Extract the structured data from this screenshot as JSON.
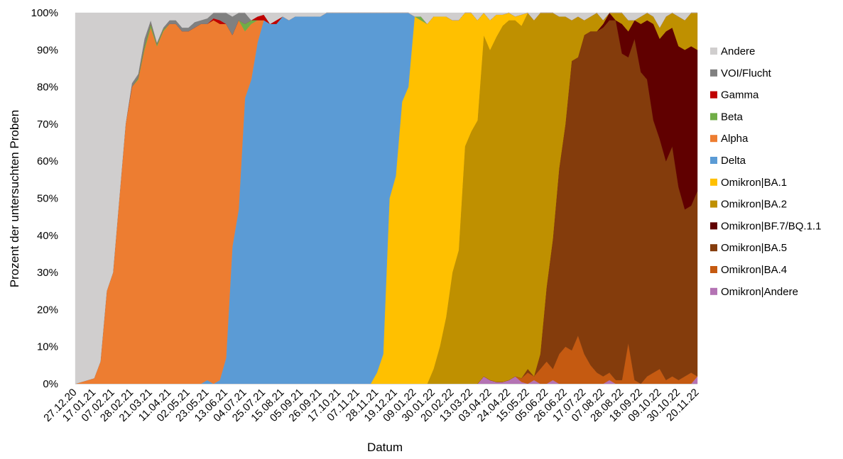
{
  "chart_data": {
    "type": "area",
    "stacked_percent": true,
    "xlabel": "Datum",
    "ylabel": "Prozent der untersuchten Proben",
    "ylim": [
      0,
      100
    ],
    "y_ticks": [
      "0%",
      "10%",
      "20%",
      "30%",
      "40%",
      "50%",
      "60%",
      "70%",
      "80%",
      "90%",
      "100%"
    ],
    "x_tick_labels": [
      "27.12.20",
      "17.01.21",
      "07.02.21",
      "28.02.21",
      "21.03.21",
      "11.04.21",
      "02.05.21",
      "23.05.21",
      "13.06.21",
      "04.07.21",
      "25.07.21",
      "15.08.21",
      "05.09.21",
      "26.09.21",
      "17.10.21",
      "07.11.21",
      "28.11.21",
      "19.12.21",
      "09.01.22",
      "30.01.22",
      "20.02.22",
      "13.03.22",
      "03.04.22",
      "24.04.22",
      "15.05.22",
      "05.06.22",
      "26.06.22",
      "17.07.22",
      "07.08.22",
      "28.08.22",
      "18.09.22",
      "09.10.22",
      "30.10.22",
      "20.11.22"
    ],
    "x_weeks": [
      1,
      4,
      7,
      10,
      13,
      16,
      19,
      22,
      25,
      28,
      31,
      34,
      37,
      40,
      43,
      46,
      49,
      52,
      55,
      58,
      61,
      64,
      67,
      70,
      73,
      76,
      79,
      82,
      85,
      88,
      91,
      94,
      97,
      100
    ],
    "x_range": [
      1,
      100
    ],
    "grid": false,
    "legend_position": "right",
    "stack_order": [
      "Omikron|Andere",
      "Omikron|BA.4",
      "Omikron|BA.5",
      "Omikron|BF.7/BQ.1.1",
      "Omikron|BA.2",
      "Omikron|BA.1",
      "Delta",
      "Alpha",
      "Beta",
      "Gamma",
      "VOI/Flucht",
      "Andere"
    ],
    "legend": [
      {
        "name": "Andere",
        "color": "#d0cece"
      },
      {
        "name": "VOI/Flucht",
        "color": "#808080"
      },
      {
        "name": "Gamma",
        "color": "#c00000"
      },
      {
        "name": "Beta",
        "color": "#70ad47"
      },
      {
        "name": "Alpha",
        "color": "#ed7d31"
      },
      {
        "name": "Delta",
        "color": "#5b9bd5"
      },
      {
        "name": "Omikron|BA.1",
        "color": "#ffc000"
      },
      {
        "name": "Omikron|BA.2",
        "color": "#bf9000"
      },
      {
        "name": "Omikron|BF.7/BQ.1.1",
        "color": "#600000"
      },
      {
        "name": "Omikron|BA.5",
        "color": "#843c0c"
      },
      {
        "name": "Omikron|BA.4",
        "color": "#c55a11"
      },
      {
        "name": "Omikron|Andere",
        "color": "#b473b4"
      }
    ],
    "series": [
      {
        "name": "Omikron|Andere",
        "color": "#b473b4",
        "points": [
          [
            1,
            0
          ],
          [
            65,
            0
          ],
          [
            66,
            2
          ],
          [
            67,
            1
          ],
          [
            68,
            0.5
          ],
          [
            69,
            0.5
          ],
          [
            70,
            1
          ],
          [
            71,
            2
          ],
          [
            72,
            0.5
          ],
          [
            73,
            0
          ],
          [
            74,
            1
          ],
          [
            75,
            0
          ],
          [
            76,
            0
          ],
          [
            77,
            1
          ],
          [
            78,
            0
          ],
          [
            85,
            0
          ],
          [
            86,
            1
          ],
          [
            87,
            0
          ],
          [
            99,
            0
          ],
          [
            100,
            2
          ]
        ]
      },
      {
        "name": "Omikron|BA.4",
        "color": "#c55a11",
        "points": [
          [
            1,
            0
          ],
          [
            70,
            0
          ],
          [
            71,
            0
          ],
          [
            72,
            1
          ],
          [
            73,
            3
          ],
          [
            74,
            1
          ],
          [
            75,
            4
          ],
          [
            76,
            6
          ],
          [
            77,
            3
          ],
          [
            78,
            8
          ],
          [
            79,
            10
          ],
          [
            80,
            9
          ],
          [
            81,
            13
          ],
          [
            82,
            8
          ],
          [
            83,
            5
          ],
          [
            84,
            3
          ],
          [
            85,
            2
          ],
          [
            86,
            2
          ],
          [
            87,
            1
          ],
          [
            88,
            1
          ],
          [
            89,
            11
          ],
          [
            90,
            1
          ],
          [
            91,
            0
          ],
          [
            92,
            2
          ],
          [
            93,
            3
          ],
          [
            94,
            4
          ],
          [
            95,
            1
          ],
          [
            96,
            2
          ],
          [
            97,
            1
          ],
          [
            98,
            2
          ],
          [
            99,
            3
          ],
          [
            100,
            0
          ]
        ]
      },
      {
        "name": "Omikron|BA.5",
        "color": "#843c0c",
        "points": [
          [
            1,
            0
          ],
          [
            70,
            0
          ],
          [
            71,
            0
          ],
          [
            72,
            0
          ],
          [
            73,
            1
          ],
          [
            74,
            0
          ],
          [
            75,
            4
          ],
          [
            76,
            20
          ],
          [
            77,
            35
          ],
          [
            78,
            50
          ],
          [
            79,
            60
          ],
          [
            80,
            78
          ],
          [
            81,
            75
          ],
          [
            82,
            86
          ],
          [
            83,
            90
          ],
          [
            84,
            92
          ],
          [
            85,
            94
          ],
          [
            86,
            95
          ],
          [
            87,
            97
          ],
          [
            88,
            88
          ],
          [
            89,
            77
          ],
          [
            90,
            92
          ],
          [
            91,
            84
          ],
          [
            92,
            80
          ],
          [
            93,
            68
          ],
          [
            94,
            62
          ],
          [
            95,
            59
          ],
          [
            96,
            62
          ],
          [
            97,
            52
          ],
          [
            98,
            45
          ],
          [
            99,
            45
          ],
          [
            100,
            50
          ]
        ]
      },
      {
        "name": "Omikron|BF.7/BQ.1.1",
        "color": "#600000",
        "points": [
          [
            1,
            0
          ],
          [
            82,
            0
          ],
          [
            83,
            0
          ],
          [
            84,
            0
          ],
          [
            85,
            1
          ],
          [
            86,
            2
          ],
          [
            87,
            0
          ],
          [
            88,
            8
          ],
          [
            89,
            7
          ],
          [
            90,
            5
          ],
          [
            91,
            13
          ],
          [
            92,
            16
          ],
          [
            93,
            26
          ],
          [
            94,
            27
          ],
          [
            95,
            35
          ],
          [
            96,
            32
          ],
          [
            97,
            38
          ],
          [
            98,
            43
          ],
          [
            99,
            43
          ],
          [
            100,
            38
          ]
        ]
      },
      {
        "name": "Omikron|BA.2",
        "color": "#bf9000",
        "points": [
          [
            1,
            0
          ],
          [
            57,
            0
          ],
          [
            58,
            4
          ],
          [
            59,
            10
          ],
          [
            60,
            18
          ],
          [
            61,
            30
          ],
          [
            62,
            36
          ],
          [
            63,
            64
          ],
          [
            64,
            68
          ],
          [
            65,
            71
          ],
          [
            66,
            92
          ],
          [
            67,
            89
          ],
          [
            68,
            93
          ],
          [
            69,
            96
          ],
          [
            70,
            97
          ],
          [
            71,
            96
          ],
          [
            72,
            95
          ],
          [
            73,
            96
          ],
          [
            74,
            96
          ],
          [
            75,
            94
          ],
          [
            76,
            81
          ],
          [
            77,
            64
          ],
          [
            78,
            41
          ],
          [
            79,
            29
          ],
          [
            80,
            11
          ],
          [
            81,
            11
          ],
          [
            82,
            4
          ],
          [
            83,
            4
          ],
          [
            84,
            5
          ],
          [
            85,
            1
          ],
          [
            86,
            0
          ],
          [
            87,
            2
          ],
          [
            88,
            3
          ],
          [
            89,
            3
          ],
          [
            90,
            0
          ],
          [
            91,
            2
          ],
          [
            92,
            2
          ],
          [
            93,
            2
          ],
          [
            94,
            3
          ],
          [
            95,
            4
          ],
          [
            96,
            4
          ],
          [
            97,
            8
          ],
          [
            98,
            8
          ],
          [
            99,
            9
          ],
          [
            100,
            10
          ]
        ]
      },
      {
        "name": "Omikron|BA.1",
        "color": "#ffc000",
        "points": [
          [
            1,
            0
          ],
          [
            48,
            0
          ],
          [
            49,
            3
          ],
          [
            50,
            8
          ],
          [
            51,
            50
          ],
          [
            52,
            56
          ],
          [
            53,
            76
          ],
          [
            54,
            80
          ],
          [
            55,
            99
          ],
          [
            56,
            98
          ],
          [
            57,
            97
          ],
          [
            58,
            95
          ],
          [
            59,
            89
          ],
          [
            60,
            81
          ],
          [
            61,
            68
          ],
          [
            62,
            62
          ],
          [
            63,
            36
          ],
          [
            64,
            32
          ],
          [
            65,
            27
          ],
          [
            66,
            6
          ],
          [
            67,
            8
          ],
          [
            68,
            6
          ],
          [
            69,
            3
          ],
          [
            70,
            2
          ],
          [
            71,
            1
          ],
          [
            72,
            3
          ],
          [
            73,
            0
          ],
          [
            100,
            0
          ]
        ]
      },
      {
        "name": "Delta",
        "color": "#5b9bd5",
        "points": [
          [
            1,
            0
          ],
          [
            21,
            0
          ],
          [
            22,
            1
          ],
          [
            23,
            0
          ],
          [
            24,
            1
          ],
          [
            25,
            7
          ],
          [
            26,
            37
          ],
          [
            27,
            47
          ],
          [
            28,
            77
          ],
          [
            29,
            82
          ],
          [
            30,
            92
          ],
          [
            31,
            98
          ],
          [
            32,
            97
          ],
          [
            33,
            97
          ],
          [
            34,
            99
          ],
          [
            35,
            98
          ],
          [
            36,
            99
          ],
          [
            37,
            99
          ],
          [
            40,
            99
          ],
          [
            41,
            100
          ],
          [
            48,
            100
          ],
          [
            49,
            97
          ],
          [
            50,
            92
          ],
          [
            51,
            50
          ],
          [
            52,
            44
          ],
          [
            53,
            24
          ],
          [
            54,
            20
          ],
          [
            55,
            0
          ],
          [
            100,
            0
          ]
        ]
      },
      {
        "name": "Alpha",
        "color": "#ed7d31",
        "points": [
          [
            1,
            0
          ],
          [
            2,
            0.5
          ],
          [
            3,
            1
          ],
          [
            4,
            1.5
          ],
          [
            5,
            6
          ],
          [
            6,
            25
          ],
          [
            7,
            30
          ],
          [
            8,
            50
          ],
          [
            9,
            70
          ],
          [
            10,
            80
          ],
          [
            11,
            82
          ],
          [
            12,
            90
          ],
          [
            13,
            96
          ],
          [
            14,
            91
          ],
          [
            15,
            95
          ],
          [
            16,
            97
          ],
          [
            17,
            97
          ],
          [
            18,
            95
          ],
          [
            19,
            95
          ],
          [
            20,
            96
          ],
          [
            21,
            97
          ],
          [
            22,
            96
          ],
          [
            23,
            98
          ],
          [
            24,
            96
          ],
          [
            25,
            90
          ],
          [
            26,
            57
          ],
          [
            27,
            51
          ],
          [
            28,
            18
          ],
          [
            29,
            15
          ],
          [
            30,
            6
          ],
          [
            31,
            0
          ],
          [
            100,
            0
          ]
        ]
      },
      {
        "name": "Beta",
        "color": "#70ad47",
        "points": [
          [
            1,
            0
          ],
          [
            10,
            0
          ],
          [
            11,
            0.5
          ],
          [
            12,
            1
          ],
          [
            13,
            1
          ],
          [
            14,
            0.5
          ],
          [
            15,
            0.5
          ],
          [
            16,
            0
          ],
          [
            27,
            0
          ],
          [
            28,
            2
          ],
          [
            29,
            1
          ],
          [
            30,
            0
          ],
          [
            55,
            0
          ],
          [
            56,
            1
          ],
          [
            57,
            0
          ],
          [
            100,
            0
          ]
        ]
      },
      {
        "name": "Gamma",
        "color": "#c00000",
        "points": [
          [
            1,
            0
          ],
          [
            22,
            0
          ],
          [
            23,
            0.5
          ],
          [
            24,
            1
          ],
          [
            25,
            0
          ],
          [
            29,
            0
          ],
          [
            30,
            1
          ],
          [
            31,
            1.5
          ],
          [
            32,
            0
          ],
          [
            33,
            1
          ],
          [
            34,
            0
          ],
          [
            100,
            0
          ]
        ]
      },
      {
        "name": "VOI/Flucht",
        "color": "#808080",
        "points": [
          [
            1,
            0
          ],
          [
            9,
            0
          ],
          [
            10,
            1
          ],
          [
            11,
            1
          ],
          [
            12,
            2
          ],
          [
            13,
            1
          ],
          [
            14,
            0.5
          ],
          [
            15,
            0.5
          ],
          [
            16,
            1
          ],
          [
            17,
            1
          ],
          [
            18,
            1
          ],
          [
            19,
            1
          ],
          [
            20,
            1.5
          ],
          [
            21,
            1
          ],
          [
            22,
            1.5
          ],
          [
            23,
            1.5
          ],
          [
            24,
            2
          ],
          [
            25,
            3
          ],
          [
            26,
            5
          ],
          [
            27,
            2
          ],
          [
            28,
            3
          ],
          [
            29,
            0
          ],
          [
            100,
            0
          ]
        ]
      },
      {
        "name": "Andere",
        "color": "#d0cece",
        "auto_fill": true
      }
    ]
  }
}
